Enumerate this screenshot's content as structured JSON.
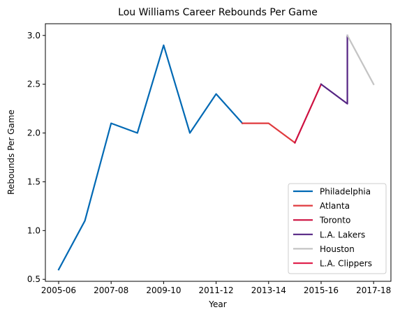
{
  "chart_data": {
    "type": "line",
    "title": "Lou Williams Career Rebounds Per Game",
    "xlabel": "Year",
    "ylabel": "Rebounds Per Game",
    "x_categories": [
      "2005-06",
      "2006-07",
      "2007-08",
      "2008-09",
      "2009-10",
      "2010-11",
      "2011-12",
      "2012-13",
      "2013-14",
      "2014-15",
      "2015-16",
      "2016-17",
      "2017-18"
    ],
    "x_tick_labels": [
      "2005-06",
      "2007-08",
      "2009-10",
      "2011-12",
      "2013-14",
      "2015-16",
      "2017-18"
    ],
    "y_ticks": [
      "0.5",
      "1.0",
      "1.5",
      "2.0",
      "2.5",
      "3.0"
    ],
    "ylim": [
      0.48,
      3.12
    ],
    "legend_placement": "lower-right",
    "grid": false,
    "series": [
      {
        "name": "Philadelphia",
        "color": "#0069b4",
        "points": [
          {
            "x": "2005-06",
            "y": 0.6
          },
          {
            "x": "2006-07",
            "y": 1.1
          },
          {
            "x": "2007-08",
            "y": 2.1
          },
          {
            "x": "2008-09",
            "y": 2.0
          },
          {
            "x": "2009-10",
            "y": 2.9
          },
          {
            "x": "2010-11",
            "y": 2.0
          },
          {
            "x": "2011-12",
            "y": 2.4
          },
          {
            "x": "2012-13",
            "y": 2.1
          }
        ]
      },
      {
        "name": "Atlanta",
        "color": "#e03a3e",
        "points": [
          {
            "x": "2012-13",
            "y": 2.1
          },
          {
            "x": "2013-14",
            "y": 2.1
          },
          {
            "x": "2014-15",
            "y": 1.9
          }
        ]
      },
      {
        "name": "Toronto",
        "color": "#ce1141",
        "points": [
          {
            "x": "2014-15",
            "y": 1.9
          },
          {
            "x": "2015-16",
            "y": 2.5
          }
        ]
      },
      {
        "name": "L.A. Lakers",
        "color": "#552583",
        "points": [
          {
            "x": "2015-16",
            "y": 2.5
          },
          {
            "x": "2016-17",
            "y": 2.3
          },
          {
            "x": "2016-17",
            "y": 3.0
          }
        ]
      },
      {
        "name": "Houston",
        "color": "#c4c4c4",
        "points": [
          {
            "x": "2016-17",
            "y": 3.0
          },
          {
            "x": "2017-18",
            "y": 2.5
          }
        ]
      },
      {
        "name": "L.A. Clippers",
        "color": "#e0234e",
        "points": []
      }
    ]
  }
}
